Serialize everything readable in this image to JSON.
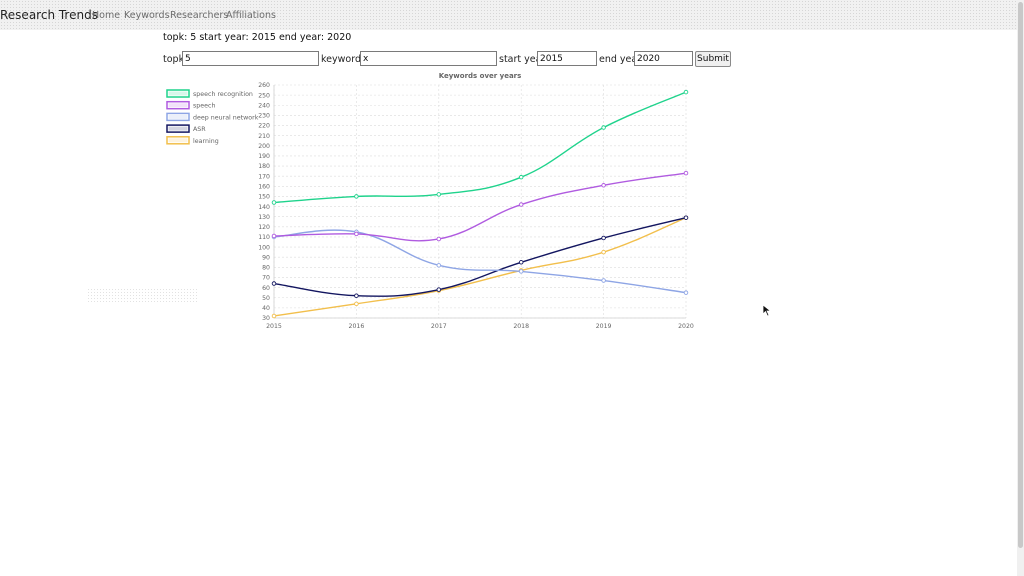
{
  "nav": {
    "brand": "Research Trends",
    "links": [
      "Home",
      "Keywords",
      "Researchers",
      "Affiliations"
    ]
  },
  "summary": "topk: 5 start year: 2015 end year: 2020",
  "form": {
    "topk_label": "topk:",
    "topk_value": "5",
    "keywords_label": "keywords:",
    "keywords_value": "x",
    "start_label": "start year:",
    "start_value": "2015",
    "end_label": "end year:",
    "end_value": "2020",
    "submit_label": "Submit"
  },
  "chart_data": {
    "type": "line",
    "title": "Keywords over years",
    "x": [
      "2015",
      "2016",
      "2017",
      "2018",
      "2019",
      "2020"
    ],
    "ylim": [
      30,
      260
    ],
    "ytick_step": 10,
    "grid": true,
    "legend_position": "top-left",
    "series": [
      {
        "name": "speech recognition",
        "color": "#1fd38c",
        "values": [
          144,
          150,
          152,
          169,
          218,
          253
        ]
      },
      {
        "name": "speech",
        "color": "#b05be0",
        "values": [
          111,
          113,
          108,
          142,
          161,
          173
        ]
      },
      {
        "name": "deep neural network",
        "color": "#8ea5e5",
        "values": [
          110,
          115,
          82,
          76,
          67,
          55
        ]
      },
      {
        "name": "ASR",
        "color": "#131660",
        "values": [
          64,
          52,
          58,
          85,
          109,
          129
        ]
      },
      {
        "name": "learning",
        "color": "#f2bf4c",
        "values": [
          32,
          44,
          57,
          77,
          95,
          129
        ]
      }
    ]
  }
}
